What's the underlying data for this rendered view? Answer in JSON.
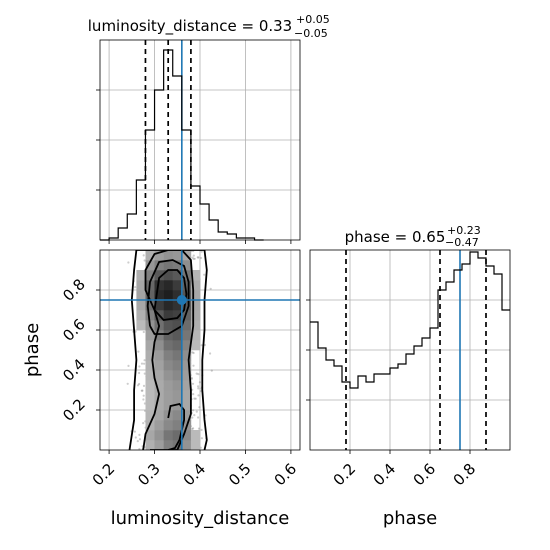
{
  "chart_data": {
    "type": "corner",
    "parameters": [
      "luminosity_distance",
      "phase"
    ],
    "truth": {
      "luminosity_distance": 0.36,
      "phase": 0.75
    },
    "panels": [
      {
        "name": "luminosity_distance",
        "type": "histogram",
        "title_name": "luminosity_distance",
        "title_median": "0.33",
        "title_plus": "+0.05",
        "title_minus": "−0.05",
        "xlim": [
          0.18,
          0.62
        ],
        "ylim": [
          0,
          100
        ],
        "bin_edges": [
          0.18,
          0.2,
          0.22,
          0.24,
          0.26,
          0.28,
          0.3,
          0.32,
          0.34,
          0.36,
          0.38,
          0.4,
          0.42,
          0.44,
          0.46,
          0.48,
          0.5,
          0.52,
          0.54
        ],
        "counts": [
          0,
          1,
          6,
          13,
          30,
          55,
          75,
          95,
          82,
          55,
          27,
          18,
          10,
          4,
          3,
          1,
          1,
          0
        ],
        "quantiles": [
          0.28,
          0.33,
          0.38
        ],
        "xticks": [
          0.2,
          0.3,
          0.4,
          0.5,
          0.6
        ],
        "xtick_labels": []
      },
      {
        "name": "phase",
        "type": "histogram",
        "title_name": "phase",
        "title_median": "0.65",
        "title_plus": "+0.23",
        "title_minus": "−0.47",
        "xlim": [
          0.0,
          1.0
        ],
        "ylim": [
          0,
          100
        ],
        "bin_edges": [
          0.0,
          0.04,
          0.08,
          0.12,
          0.16,
          0.2,
          0.24,
          0.28,
          0.32,
          0.36,
          0.4,
          0.44,
          0.48,
          0.52,
          0.56,
          0.6,
          0.64,
          0.68,
          0.72,
          0.76,
          0.8,
          0.84,
          0.88,
          0.92,
          0.96,
          1.0
        ],
        "counts": [
          64,
          51,
          45,
          42,
          34,
          31,
          37,
          34,
          38,
          38,
          41,
          43,
          48,
          52,
          56,
          61,
          80,
          84,
          90,
          93,
          99,
          96,
          92,
          88,
          70
        ],
        "quantiles": [
          0.18,
          0.65,
          0.88
        ],
        "xticks": [
          0.2,
          0.4,
          0.6,
          0.8
        ],
        "xtick_labels": [
          "0.2",
          "0.4",
          "0.6",
          "0.8"
        ],
        "xlabel": "phase"
      },
      {
        "name": "luminosity_distance-phase",
        "type": "2d_density",
        "xlim": [
          0.18,
          0.62
        ],
        "ylim": [
          0.0,
          1.0
        ],
        "xticks": [
          0.2,
          0.3,
          0.4,
          0.5,
          0.6
        ],
        "xtick_labels": [
          "0.2",
          "0.3",
          "0.4",
          "0.5",
          "0.6"
        ],
        "yticks": [
          0.2,
          0.4,
          0.6,
          0.8
        ],
        "ytick_labels": [
          "0.2",
          "0.4",
          "0.6",
          "0.8"
        ],
        "xlabel": "luminosity_distance",
        "ylabel": "phase",
        "density_x_edges": [
          0.24,
          0.26,
          0.28,
          0.3,
          0.32,
          0.34,
          0.36,
          0.38,
          0.4,
          0.42,
          0.44
        ],
        "density_y_edges": [
          0.0,
          0.05,
          0.1,
          0.15,
          0.2,
          0.25,
          0.3,
          0.35,
          0.4,
          0.45,
          0.5,
          0.55,
          0.6,
          0.65,
          0.7,
          0.75,
          0.8,
          0.85,
          0.9,
          0.95,
          1.0
        ],
        "density": [
          [
            0.05,
            0.15,
            0.25,
            0.35,
            0.5,
            0.55,
            0.4,
            0.2,
            0.08,
            0.02
          ],
          [
            0.05,
            0.15,
            0.3,
            0.4,
            0.55,
            0.6,
            0.45,
            0.2,
            0.08,
            0.02
          ],
          [
            0.05,
            0.12,
            0.25,
            0.35,
            0.45,
            0.5,
            0.4,
            0.18,
            0.06,
            0.02
          ],
          [
            0.04,
            0.1,
            0.22,
            0.3,
            0.4,
            0.45,
            0.35,
            0.15,
            0.05,
            0.01
          ],
          [
            0.04,
            0.1,
            0.2,
            0.28,
            0.35,
            0.38,
            0.3,
            0.12,
            0.05,
            0.01
          ],
          [
            0.04,
            0.1,
            0.2,
            0.28,
            0.35,
            0.38,
            0.3,
            0.12,
            0.05,
            0.01
          ],
          [
            0.04,
            0.1,
            0.2,
            0.28,
            0.36,
            0.4,
            0.32,
            0.13,
            0.05,
            0.01
          ],
          [
            0.04,
            0.1,
            0.22,
            0.3,
            0.4,
            0.45,
            0.35,
            0.15,
            0.05,
            0.01
          ],
          [
            0.05,
            0.12,
            0.24,
            0.33,
            0.45,
            0.5,
            0.38,
            0.17,
            0.06,
            0.02
          ],
          [
            0.05,
            0.13,
            0.26,
            0.36,
            0.5,
            0.55,
            0.42,
            0.18,
            0.07,
            0.02
          ],
          [
            0.05,
            0.15,
            0.3,
            0.42,
            0.58,
            0.62,
            0.48,
            0.2,
            0.08,
            0.02
          ],
          [
            0.06,
            0.18,
            0.35,
            0.5,
            0.65,
            0.7,
            0.55,
            0.22,
            0.08,
            0.02
          ],
          [
            0.07,
            0.2,
            0.4,
            0.58,
            0.72,
            0.75,
            0.6,
            0.25,
            0.09,
            0.02
          ],
          [
            0.08,
            0.25,
            0.5,
            0.7,
            0.85,
            0.82,
            0.65,
            0.28,
            0.1,
            0.03
          ],
          [
            0.1,
            0.3,
            0.6,
            0.85,
            0.95,
            0.9,
            0.7,
            0.3,
            0.1,
            0.03
          ],
          [
            0.1,
            0.32,
            0.65,
            0.95,
            1.0,
            0.92,
            0.72,
            0.3,
            0.1,
            0.03
          ],
          [
            0.1,
            0.3,
            0.62,
            0.9,
            0.95,
            0.85,
            0.65,
            0.28,
            0.1,
            0.03
          ],
          [
            0.08,
            0.25,
            0.5,
            0.7,
            0.75,
            0.7,
            0.55,
            0.22,
            0.08,
            0.02
          ],
          [
            0.06,
            0.18,
            0.38,
            0.5,
            0.55,
            0.52,
            0.42,
            0.18,
            0.06,
            0.02
          ],
          [
            0.05,
            0.12,
            0.25,
            0.35,
            0.4,
            0.38,
            0.3,
            0.12,
            0.05,
            0.01
          ]
        ],
        "contours": [
          {
            "level": 1,
            "x": [
              0.33,
              0.345,
              0.355,
              0.36,
              0.365,
              0.365,
              0.355,
              0.335,
              0.33
            ],
            "y": [
              0.0,
              0.01,
              0.05,
              0.1,
              0.15,
              0.2,
              0.23,
              0.22,
              0.16
            ]
          },
          {
            "level": 1,
            "x": [
              0.3,
              0.305,
              0.31,
              0.33,
              0.35,
              0.365,
              0.37,
              0.365,
              0.35,
              0.32,
              0.3
            ],
            "y": [
              0.7,
              0.78,
              0.86,
              0.9,
              0.9,
              0.86,
              0.78,
              0.7,
              0.66,
              0.65,
              0.7
            ]
          },
          {
            "level": 2,
            "x": [
              0.29,
              0.285,
              0.29,
              0.31,
              0.34,
              0.365,
              0.375,
              0.375,
              0.36,
              0.33,
              0.3,
              0.29
            ],
            "y": [
              0.62,
              0.72,
              0.84,
              0.94,
              0.95,
              0.92,
              0.84,
              0.72,
              0.62,
              0.58,
              0.58,
              0.62
            ]
          },
          {
            "level": 3,
            "x": [
              0.275,
              0.28,
              0.3,
              0.31,
              0.3,
              0.295,
              0.3,
              0.31,
              0.3,
              0.28,
              0.28,
              0.3,
              0.33,
              0.36,
              0.38,
              0.385,
              0.385,
              0.375,
              0.38,
              0.38,
              0.365,
              0.35,
              0.32,
              0.29
            ],
            "y": [
              0.0,
              0.08,
              0.18,
              0.28,
              0.36,
              0.45,
              0.54,
              0.62,
              0.7,
              0.8,
              0.9,
              0.98,
              1.0,
              1.0,
              0.95,
              0.8,
              0.62,
              0.45,
              0.3,
              0.18,
              0.08,
              0.0,
              0.0,
              0.0
            ]
          },
          {
            "level": 4,
            "x": [
              0.245,
              0.255,
              0.255,
              0.26,
              0.255,
              0.25,
              0.255,
              0.26,
              0.27,
              0.41,
              0.415,
              0.41,
              0.41,
              0.405,
              0.405,
              0.41,
              0.415,
              0.41
            ],
            "y": [
              0.0,
              0.15,
              0.3,
              0.45,
              0.6,
              0.75,
              0.9,
              1.0,
              1.0,
              1.0,
              0.9,
              0.75,
              0.6,
              0.45,
              0.3,
              0.15,
              0.05,
              0.0
            ]
          }
        ]
      }
    ]
  }
}
